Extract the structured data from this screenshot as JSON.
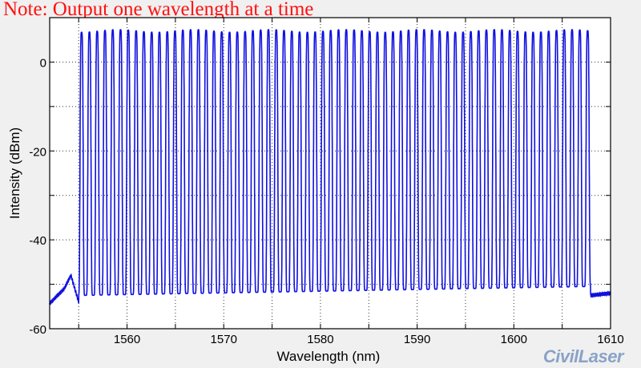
{
  "note": "Note: Output one wavelength at a time",
  "watermark": "CivilLaser",
  "chart_data": {
    "type": "line",
    "title": "",
    "xlabel": "Wavelength (nm)",
    "ylabel": "Intensity (dBm)",
    "xlim": [
      1552,
      1610
    ],
    "ylim": [
      -60,
      10
    ],
    "xticks": [
      1560,
      1570,
      1580,
      1590,
      1600,
      1610
    ],
    "yticks": [
      0,
      -20,
      -40,
      -60
    ],
    "grid": true,
    "line_color": "#1010e0",
    "series": [
      {
        "peak_wavelengths": [
          1555.3,
          1556.11,
          1556.91,
          1557.72,
          1558.52,
          1559.33,
          1560.13,
          1560.94,
          1561.74,
          1562.55,
          1563.35,
          1564.16,
          1564.96,
          1565.77,
          1566.57,
          1567.38,
          1568.18,
          1568.99,
          1569.79,
          1570.6,
          1571.4,
          1572.21,
          1573.01,
          1573.82,
          1574.62,
          1575.43,
          1576.23,
          1577.04,
          1577.84,
          1578.65,
          1579.45,
          1580.26,
          1581.06,
          1581.87,
          1582.67,
          1583.48,
          1584.28,
          1585.09,
          1585.89,
          1586.7,
          1587.5,
          1588.31,
          1589.11,
          1589.92,
          1590.72,
          1591.53,
          1592.33,
          1593.14,
          1593.94,
          1594.75,
          1595.55,
          1596.36,
          1597.16,
          1597.97,
          1598.77,
          1599.58,
          1600.38,
          1601.19,
          1601.99,
          1602.8,
          1603.6,
          1604.41,
          1605.21,
          1606.02,
          1606.82,
          1607.63
        ],
        "peak_power_dbm": 7,
        "floor_dbm_between_peaks": [
          -52.5,
          -50.5
        ],
        "baseline_outside_band": [
          [
            1552,
            -54.3
          ],
          [
            1553.5,
            -51
          ],
          [
            1554.2,
            -48
          ],
          [
            1555,
            -54
          ],
          [
            1608,
            -52.5
          ],
          [
            1610,
            -52
          ]
        ]
      }
    ]
  }
}
